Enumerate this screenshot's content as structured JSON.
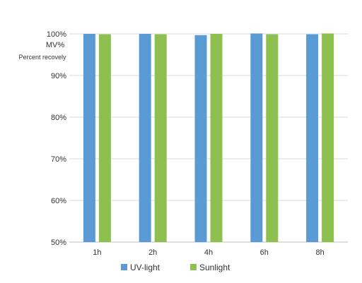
{
  "chart_data": {
    "type": "bar",
    "title": "",
    "xlabel": "",
    "ylabel": "MV%",
    "ylabel_sub": "Percent recovely",
    "categories": [
      "1h",
      "2h",
      "4h",
      "6h",
      "8h"
    ],
    "ylim": [
      50,
      100
    ],
    "yticks": [
      "50%",
      "60%",
      "70%",
      "80%",
      "90%",
      "100%"
    ],
    "series": [
      {
        "name": "UV-light",
        "values": [
          100.0,
          100.0,
          99.7,
          100.1,
          99.9
        ],
        "color": "#5B9BD5"
      },
      {
        "name": "Sunlight",
        "values": [
          99.9,
          99.9,
          100.0,
          99.9,
          100.1
        ],
        "color": "#8DC04F"
      }
    ],
    "grid": true,
    "legend": "bottom"
  }
}
